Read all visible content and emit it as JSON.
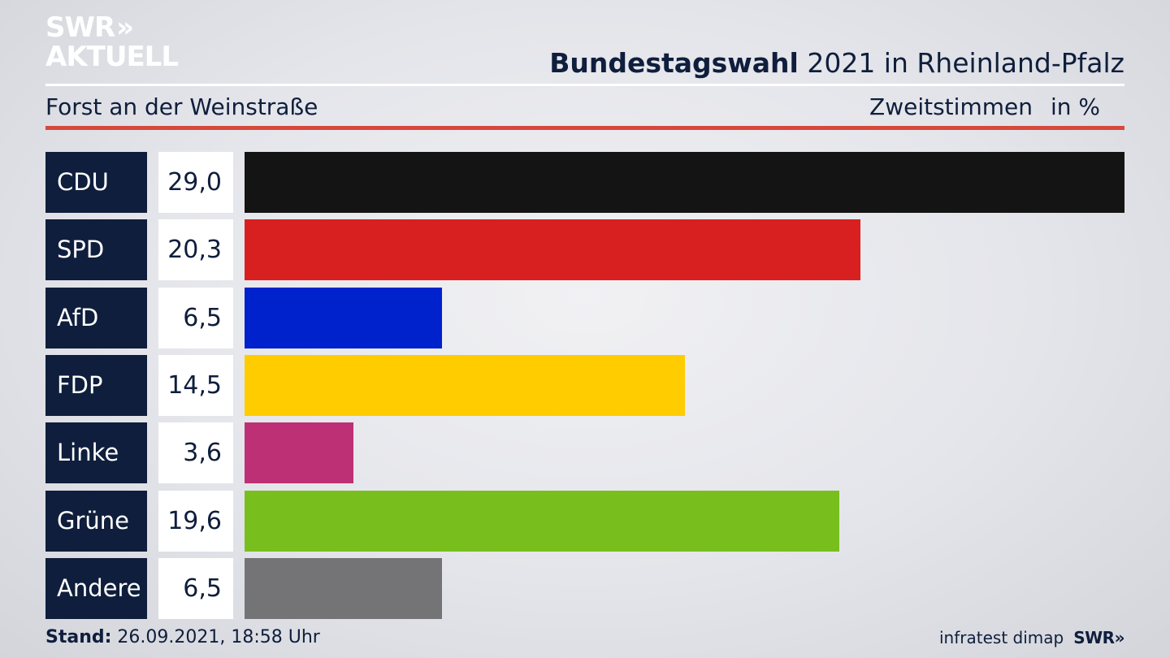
{
  "logo": {
    "line1": "SWR",
    "chevrons": "»",
    "line2": "AKTUELL"
  },
  "header": {
    "title_bold": "Bundestagswahl",
    "title_rest": " 2021 in Rheinland-Pfalz",
    "subtitle": "Forst an der Weinstraße",
    "measure": "Zweitstimmen",
    "unit": "in %"
  },
  "footer": {
    "stand_label": "Stand:",
    "stand_value": " 26.09.2021, 18:58 Uhr",
    "source": "infratest dimap",
    "brand": "SWR",
    "brand_chevrons": "»"
  },
  "chart_data": {
    "type": "bar",
    "orientation": "horizontal",
    "categories": [
      "CDU",
      "SPD",
      "AfD",
      "FDP",
      "Linke",
      "Grüne",
      "Andere"
    ],
    "values": [
      29.0,
      20.3,
      6.5,
      14.5,
      3.6,
      19.6,
      6.5
    ],
    "value_labels": [
      "29,0",
      "20,3",
      "6,5",
      "14,5",
      "3,6",
      "19,6",
      "6,5"
    ],
    "colors": [
      "#141414",
      "#d92020",
      "#0022cc",
      "#ffcc00",
      "#be3075",
      "#78bf1e",
      "#747476"
    ],
    "xlim": [
      0,
      29.0
    ],
    "grid": false,
    "legend": "none"
  }
}
